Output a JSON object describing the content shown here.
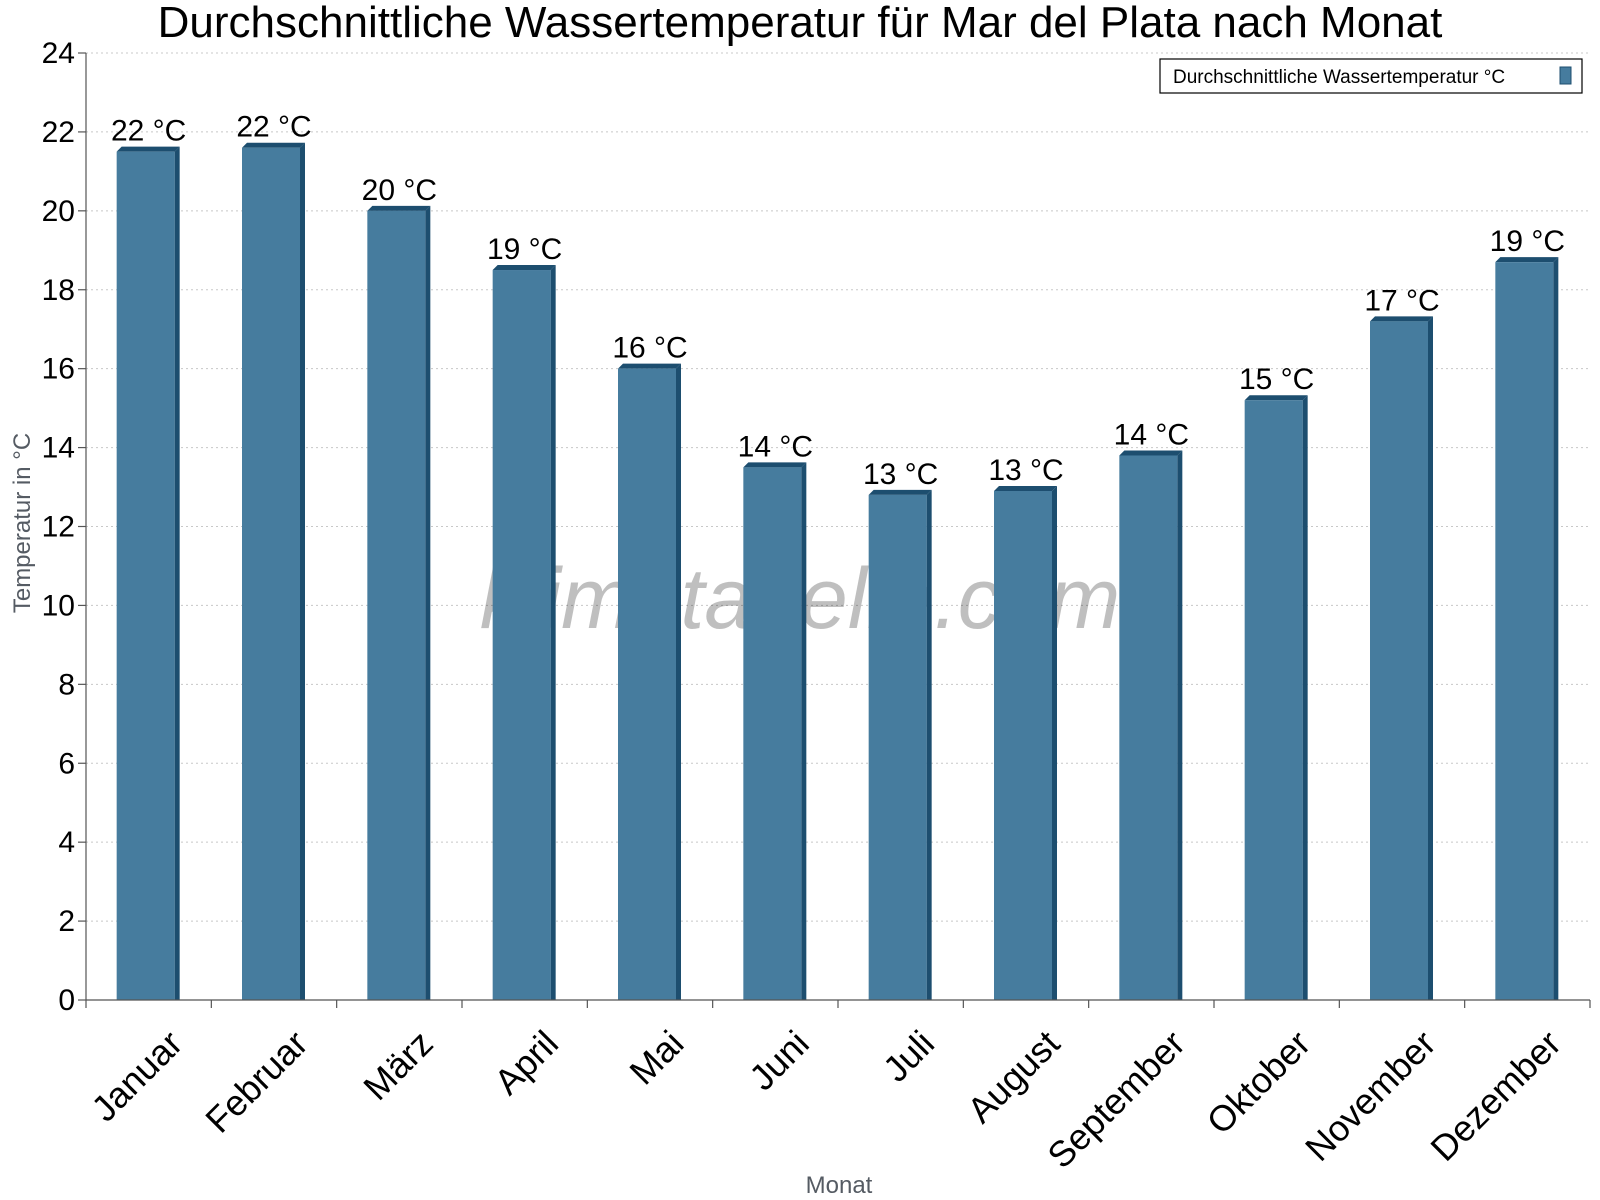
{
  "chart_data": {
    "type": "bar",
    "title": "Durchschnittliche Wassertemperatur für Mar del Plata nach Monat",
    "xlabel": "Monat",
    "ylabel": "Temperatur in °C",
    "ylim": [
      0,
      24
    ],
    "yticks": [
      "0",
      "2",
      "4",
      "6",
      "8",
      "10",
      "12",
      "14",
      "16",
      "18",
      "20",
      "22",
      "24"
    ],
    "grid": true,
    "legend_position": "top-right",
    "categories": [
      "Januar",
      "Februar",
      "März",
      "April",
      "Mai",
      "Juni",
      "Juli",
      "August",
      "September",
      "Oktober",
      "November",
      "Dezember"
    ],
    "series": [
      {
        "name": "Durchschnittliche Wassertemperatur °C",
        "values": [
          21.5,
          21.6,
          20.0,
          18.5,
          16.0,
          13.5,
          12.8,
          12.9,
          13.8,
          15.2,
          17.2,
          18.7
        ],
        "data_labels": [
          "22 °C",
          "22 °C",
          "20 °C",
          "19 °C",
          "16 °C",
          "14 °C",
          "13 °C",
          "13 °C",
          "14 °C",
          "15 °C",
          "17 °C",
          "19 °C"
        ],
        "color": "#467c9e",
        "edge_color": "#1d4e6f"
      }
    ]
  },
  "watermark": "klimatabelle.com"
}
